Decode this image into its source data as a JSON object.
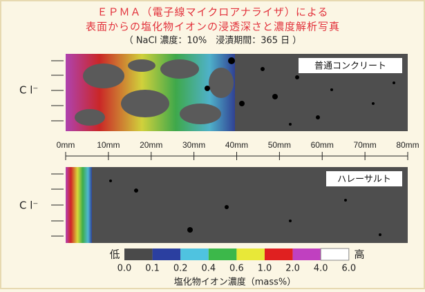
{
  "header": {
    "title_line1": "ＥＰＭＡ（電子線マイクロアナライザ）による",
    "title_line2": "表面からの塩化物イオンの浸透深さと濃度解析写真",
    "conditions": "（ NaCl 濃度：10%　浸漬期間：365 日 ）"
  },
  "panels": [
    {
      "label": "普通コンクリート",
      "ion": "C l⁻"
    },
    {
      "label": "ハレーサルト",
      "ion": "C l⁻"
    }
  ],
  "depth_scale": [
    "0mm",
    "10mm",
    "20mm",
    "30mm",
    "40mm",
    "50mm",
    "60mm",
    "70mm",
    "80mm"
  ],
  "legend": {
    "low": "低",
    "high": "高",
    "ticks": [
      "0.0",
      "0.1",
      "0.2",
      "0.4",
      "0.6",
      "1.0",
      "2.0",
      "4.0",
      "6.0"
    ],
    "title": "塩化物イオン濃度（mass%）"
  }
}
